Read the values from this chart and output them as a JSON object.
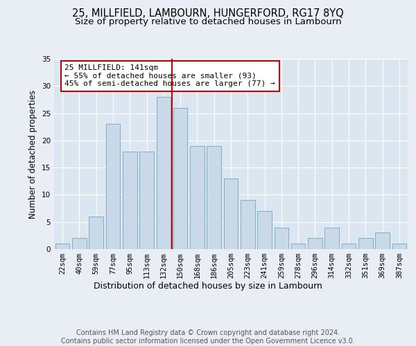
{
  "title": "25, MILLFIELD, LAMBOURN, HUNGERFORD, RG17 8YQ",
  "subtitle": "Size of property relative to detached houses in Lambourn",
  "xlabel": "Distribution of detached houses by size in Lambourn",
  "ylabel": "Number of detached properties",
  "bar_labels": [
    "22sqm",
    "40sqm",
    "59sqm",
    "77sqm",
    "95sqm",
    "113sqm",
    "132sqm",
    "150sqm",
    "168sqm",
    "186sqm",
    "205sqm",
    "223sqm",
    "241sqm",
    "259sqm",
    "278sqm",
    "296sqm",
    "314sqm",
    "332sqm",
    "351sqm",
    "369sqm",
    "387sqm"
  ],
  "bar_values": [
    1,
    2,
    6,
    23,
    18,
    18,
    28,
    26,
    19,
    19,
    13,
    9,
    7,
    4,
    1,
    2,
    4,
    1,
    2,
    3,
    1
  ],
  "bar_color": "#c9d9e8",
  "bar_edge_color": "#7aafc8",
  "vline_pos": 6.5,
  "vline_color": "#cc0000",
  "annotation_line1": "25 MILLFIELD: 141sqm",
  "annotation_line2": "← 55% of detached houses are smaller (93)",
  "annotation_line3": "45% of semi-detached houses are larger (77) →",
  "annotation_box_color": "#ffffff",
  "annotation_box_edge": "#cc0000",
  "ylim": [
    0,
    35
  ],
  "yticks": [
    0,
    5,
    10,
    15,
    20,
    25,
    30,
    35
  ],
  "bg_color": "#e8eef4",
  "plot_bg_color": "#dce6f0",
  "footer_text": "Contains HM Land Registry data © Crown copyright and database right 2024.\nContains public sector information licensed under the Open Government Licence v3.0.",
  "title_fontsize": 10.5,
  "subtitle_fontsize": 9.5,
  "xlabel_fontsize": 9,
  "ylabel_fontsize": 8.5,
  "tick_fontsize": 7.5,
  "annotation_fontsize": 8,
  "footer_fontsize": 7
}
